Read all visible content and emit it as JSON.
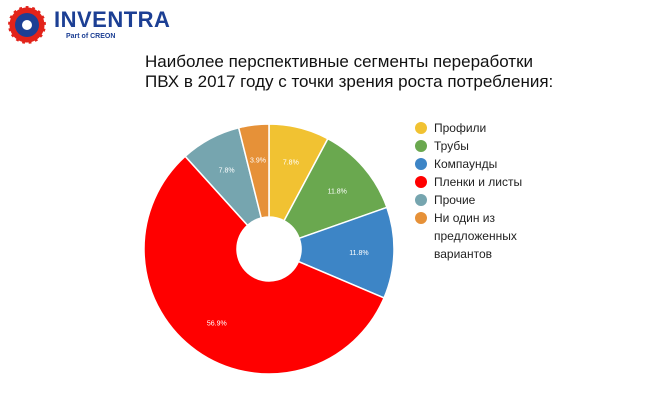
{
  "logo": {
    "name": "INVENTRA",
    "subtitle": "Part of CREON",
    "color": "#1c3f94",
    "accent": "#e2231a"
  },
  "chart_data": {
    "type": "pie",
    "title": "Наиболее перспективные сегменты переработки ПВХ в 2017 году с точки зрения роста потребления:",
    "donut": true,
    "legend_position": "right",
    "categories": [
      "Профили",
      "Трубы",
      "Компаунды",
      "Пленки и листы",
      "Прочие",
      "Ни один из предложенных вариантов"
    ],
    "values": [
      7.8,
      11.8,
      11.8,
      56.9,
      7.8,
      3.9
    ],
    "labels": [
      "7.8%",
      "11.8%",
      "11.8%",
      "56.9%",
      "7.8%",
      "3.9%"
    ],
    "colors": [
      "#f1c232",
      "#6aa84f",
      "#3d85c6",
      "#ff0000",
      "#76a5af",
      "#e69138"
    ]
  }
}
